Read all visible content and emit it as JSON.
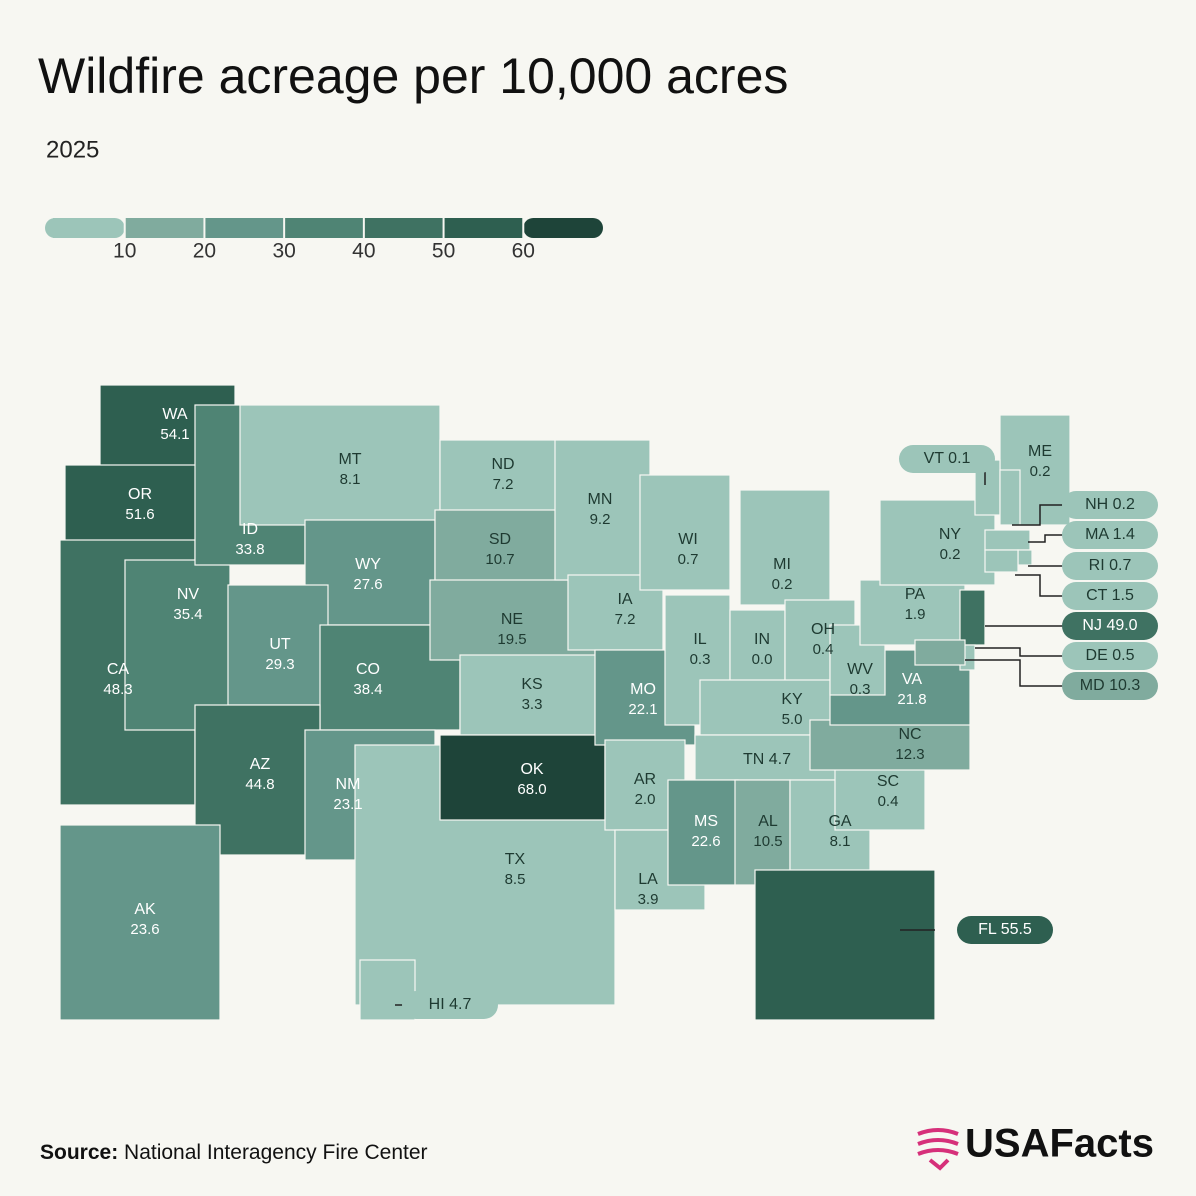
{
  "chart_data": {
    "type": "map",
    "title": "Wildfire acreage per 10,000 acres",
    "subtitle": "2025",
    "legend": {
      "lim": [
        0,
        70
      ],
      "ticks": [
        10,
        20,
        30,
        40,
        50,
        60
      ],
      "colors": [
        "#9cc5b9",
        "#80ab9e",
        "#64968a",
        "#4f8474",
        "#3f7262",
        "#2e5f50",
        "#1e4439"
      ]
    },
    "states": [
      {
        "code": "WA",
        "value": 54.1,
        "value_label": "54.1"
      },
      {
        "code": "OR",
        "value": 51.6,
        "value_label": "51.6"
      },
      {
        "code": "CA",
        "value": 48.3,
        "value_label": "48.3"
      },
      {
        "code": "NV",
        "value": 35.4,
        "value_label": "35.4"
      },
      {
        "code": "ID",
        "value": 33.8,
        "value_label": "33.8"
      },
      {
        "code": "MT",
        "value": 8.1,
        "value_label": "8.1"
      },
      {
        "code": "WY",
        "value": 27.6,
        "value_label": "27.6"
      },
      {
        "code": "UT",
        "value": 29.3,
        "value_label": "29.3"
      },
      {
        "code": "CO",
        "value": 38.4,
        "value_label": "38.4"
      },
      {
        "code": "AZ",
        "value": 44.8,
        "value_label": "44.8"
      },
      {
        "code": "NM",
        "value": 23.1,
        "value_label": "23.1"
      },
      {
        "code": "ND",
        "value": 7.2,
        "value_label": "7.2"
      },
      {
        "code": "SD",
        "value": 10.7,
        "value_label": "10.7"
      },
      {
        "code": "NE",
        "value": 19.5,
        "value_label": "19.5"
      },
      {
        "code": "KS",
        "value": 3.3,
        "value_label": "3.3"
      },
      {
        "code": "TX",
        "value": 8.5,
        "value_label": "8.5"
      },
      {
        "code": "OK",
        "value": 68.0,
        "value_label": "68.0"
      },
      {
        "code": "MN",
        "value": 9.2,
        "value_label": "9.2"
      },
      {
        "code": "IA",
        "value": 7.2,
        "value_label": "7.2"
      },
      {
        "code": "MO",
        "value": 22.1,
        "value_label": "22.1"
      },
      {
        "code": "AR",
        "value": 2.0,
        "value_label": "2.0"
      },
      {
        "code": "LA",
        "value": 3.9,
        "value_label": "3.9"
      },
      {
        "code": "WI",
        "value": 0.7,
        "value_label": "0.7"
      },
      {
        "code": "IL",
        "value": 0.3,
        "value_label": "0.3"
      },
      {
        "code": "MI",
        "value": 0.2,
        "value_label": "0.2"
      },
      {
        "code": "IN",
        "value": 0.0,
        "value_label": "0.0"
      },
      {
        "code": "OH",
        "value": 0.4,
        "value_label": "0.4"
      },
      {
        "code": "KY",
        "value": 5.0,
        "value_label": "5.0"
      },
      {
        "code": "TN",
        "value": 4.7,
        "value_label": "4.7"
      },
      {
        "code": "MS",
        "value": 22.6,
        "value_label": "22.6"
      },
      {
        "code": "AL",
        "value": 10.5,
        "value_label": "10.5"
      },
      {
        "code": "GA",
        "value": 8.1,
        "value_label": "8.1"
      },
      {
        "code": "FL",
        "value": 55.5,
        "value_label": "55.5"
      },
      {
        "code": "SC",
        "value": 0.4,
        "value_label": "0.4"
      },
      {
        "code": "NC",
        "value": 12.3,
        "value_label": "12.3"
      },
      {
        "code": "VA",
        "value": 21.8,
        "value_label": "21.8"
      },
      {
        "code": "WV",
        "value": 0.3,
        "value_label": "0.3"
      },
      {
        "code": "PA",
        "value": 1.9,
        "value_label": "1.9"
      },
      {
        "code": "NY",
        "value": 0.2,
        "value_label": "0.2"
      },
      {
        "code": "ME",
        "value": 0.2,
        "value_label": "0.2"
      },
      {
        "code": "VT",
        "value": 0.1,
        "value_label": "0.1"
      },
      {
        "code": "NH",
        "value": 0.2,
        "value_label": "0.2"
      },
      {
        "code": "MA",
        "value": 1.4,
        "value_label": "1.4"
      },
      {
        "code": "RI",
        "value": 0.7,
        "value_label": "0.7"
      },
      {
        "code": "CT",
        "value": 1.5,
        "value_label": "1.5"
      },
      {
        "code": "NJ",
        "value": 49.0,
        "value_label": "49.0"
      },
      {
        "code": "DE",
        "value": 0.5,
        "value_label": "0.5"
      },
      {
        "code": "MD",
        "value": 10.3,
        "value_label": "10.3"
      },
      {
        "code": "AK",
        "value": 23.6,
        "value_label": "23.6"
      },
      {
        "code": "HI",
        "value": 4.7,
        "value_label": "4.7"
      }
    ],
    "source_label": "Source:",
    "source": "National Interagency Fire Center",
    "brand": "USAFacts"
  }
}
